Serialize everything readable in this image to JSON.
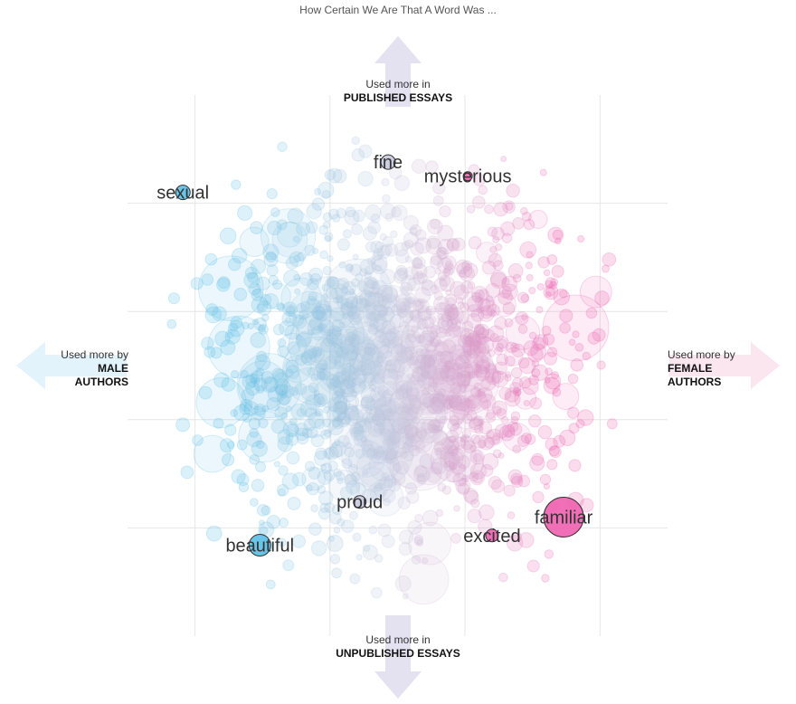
{
  "title": "How Certain We Are That A Word Was ...",
  "axes": {
    "top": {
      "line1": "Used more in",
      "line2": "PUBLISHED ESSAYS"
    },
    "bottom": {
      "line1": "Used more in",
      "line2": "UNPUBLISHED ESSAYS"
    },
    "left": {
      "line1": "Used more by",
      "line2": "MALE",
      "line3": "AUTHORS"
    },
    "right": {
      "line1": "Used more by",
      "line2": "FEMALE",
      "line3": "AUTHORS"
    }
  },
  "colors": {
    "male": "#5bbfe6",
    "female": "#ee5fae",
    "neutral": "#c8c9de",
    "arrow_up_down": "#e4e2f0",
    "arrow_left": "#e2f3fb",
    "arrow_right": "#fbe5ee"
  },
  "chart_data": {
    "type": "scatter",
    "title": "How Certain We Are That A Word Was ...",
    "xlim": [
      -2,
      2
    ],
    "ylim": [
      -2.5,
      2.5
    ],
    "grid": true,
    "legend": "none",
    "highlighted": [
      {
        "word": "sexual",
        "x": -1.59,
        "y": 1.6,
        "size": 8,
        "group": "male"
      },
      {
        "word": "fine",
        "x": -0.07,
        "y": 1.88,
        "size": 8,
        "group": "neutral"
      },
      {
        "word": "mysterious",
        "x": 0.52,
        "y": 1.75,
        "size": 5,
        "group": "female"
      },
      {
        "word": "proud",
        "x": -0.28,
        "y": -1.26,
        "size": 7,
        "group": "neutral"
      },
      {
        "word": "beautiful",
        "x": -1.02,
        "y": -1.66,
        "size": 12,
        "group": "male"
      },
      {
        "word": "excited",
        "x": 0.7,
        "y": -1.57,
        "size": 7,
        "group": "female"
      },
      {
        "word": "familiar",
        "x": 1.23,
        "y": -1.4,
        "size": 22,
        "group": "female"
      }
    ]
  }
}
